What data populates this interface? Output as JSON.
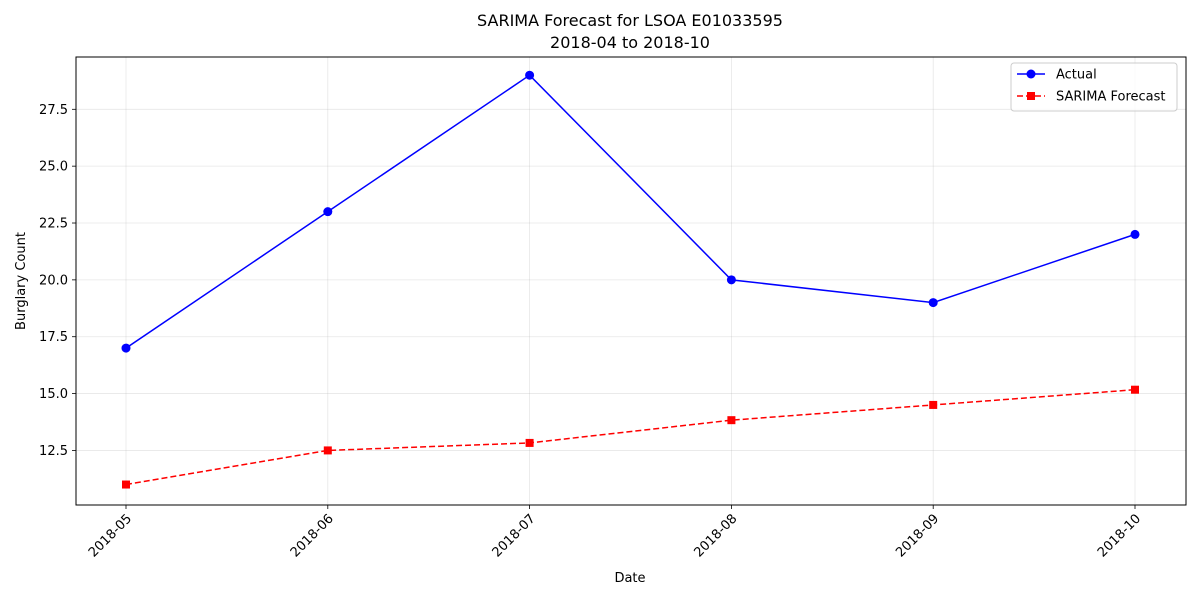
{
  "chart_data": {
    "type": "line",
    "title": "SARIMA Forecast for LSOA E01033595",
    "subtitle": "2018-04 to 2018-10",
    "xlabel": "Date",
    "ylabel": "Burglary Count",
    "x": [
      "2018-05",
      "2018-06",
      "2018-07",
      "2018-08",
      "2018-09",
      "2018-10"
    ],
    "ylim": [
      10.1,
      29.8
    ],
    "yticks": [
      12.5,
      15.0,
      17.5,
      20.0,
      22.5,
      25.0,
      27.5
    ],
    "ytick_labels": [
      "12.5",
      "15.0",
      "17.5",
      "20.0",
      "22.5",
      "25.0",
      "27.5"
    ],
    "grid": true,
    "legend_position": "top-right",
    "series": [
      {
        "name": "Actual",
        "values": [
          17,
          23,
          29,
          20,
          19,
          22
        ],
        "color": "#0000ff",
        "marker": "circle",
        "linestyle": "solid"
      },
      {
        "name": "SARIMA Forecast",
        "values": [
          11.0,
          12.5,
          12.83,
          13.83,
          14.5,
          15.17
        ],
        "color": "#ff0000",
        "marker": "square",
        "linestyle": "dashed"
      }
    ]
  }
}
